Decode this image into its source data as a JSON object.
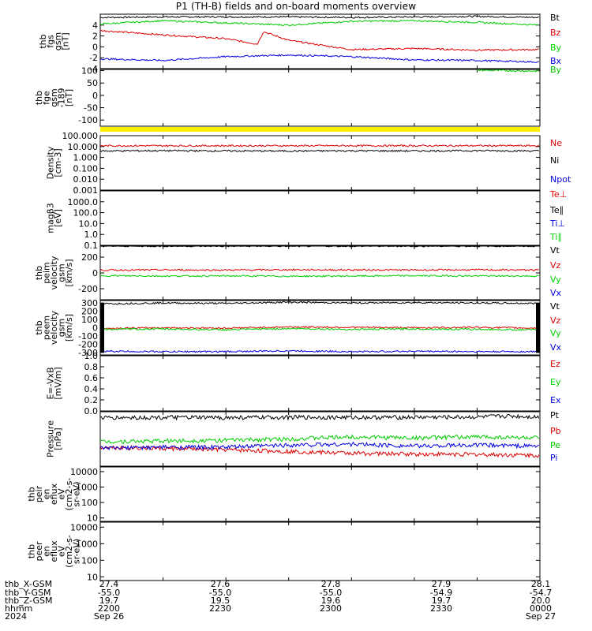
{
  "title": "P1 (TH-B) fields and on-board moments overview",
  "colors": {
    "black": "#000000",
    "red": "#dd0000",
    "green": "#00cc00",
    "blue": "#0000dd",
    "yellow": "#ffee00"
  },
  "chart_data": [
    {
      "type": "line",
      "ylabel": [
        "thb",
        "fgs",
        "gsm",
        "[nT]"
      ],
      "ylim": [
        -4,
        6
      ],
      "yticks": [
        "4",
        "2",
        "0",
        "-2",
        "-4"
      ],
      "series": [
        {
          "name": "Bt",
          "color": "black",
          "x": [
            27.4,
            27.5,
            27.6,
            27.7,
            27.8,
            27.9,
            28.0,
            28.1
          ],
          "values": [
            5.4,
            5.5,
            5.5,
            5.5,
            5.4,
            5.5,
            5.6,
            5.4
          ]
        },
        {
          "name": "Bz",
          "color": "red",
          "x": [
            27.4,
            27.5,
            27.6,
            27.65,
            27.66,
            27.7,
            27.8,
            27.9,
            28.0,
            28.1
          ],
          "values": [
            3.0,
            2.2,
            1.5,
            0.5,
            2.8,
            1.2,
            -0.5,
            -0.3,
            -0.6,
            -0.5
          ]
        },
        {
          "name": "By",
          "color": "green",
          "x": [
            27.4,
            27.5,
            27.6,
            27.7,
            27.8,
            27.9,
            28.0,
            28.1
          ],
          "values": [
            4.2,
            4.8,
            4.4,
            4.0,
            4.7,
            4.8,
            4.5,
            4.0
          ]
        },
        {
          "name": "Bx",
          "color": "blue",
          "x": [
            27.4,
            27.5,
            27.6,
            27.7,
            27.8,
            27.9,
            28.0,
            28.1
          ],
          "values": [
            -2.2,
            -2.5,
            -1.8,
            -1.5,
            -1.8,
            -2.4,
            -2.5,
            -2.8
          ]
        }
      ]
    },
    {
      "type": "line",
      "ylabel": [
        "thb",
        "fge",
        "gsm",
        "-189",
        "[nT]"
      ],
      "ylim": [
        -125,
        105
      ],
      "yticks": [
        "100",
        "50",
        "0",
        "-50",
        "-100"
      ],
      "series": [
        {
          "name": "By",
          "color": "green",
          "x": [
            28.0,
            28.1
          ],
          "values": [
            102,
            98
          ]
        }
      ]
    },
    {
      "type": "line",
      "ylabel": [
        "Density",
        "[cm-3]"
      ],
      "scale": "log",
      "ylim": [
        0.001,
        100
      ],
      "yticks": [
        "100.000",
        "10.000",
        "1.000",
        "0.100",
        "0.010",
        "0.001"
      ],
      "series": [
        {
          "name": "Ne",
          "color": "red",
          "x": [
            27.4,
            28.1
          ],
          "values": [
            12,
            12
          ]
        },
        {
          "name": "Ni",
          "color": "black",
          "x": [
            27.4,
            27.5,
            27.6,
            27.7,
            27.8,
            27.9,
            28.0,
            28.1
          ],
          "values": [
            4.0,
            4.2,
            4.0,
            3.9,
            4.1,
            4.0,
            4.2,
            4.0
          ]
        },
        {
          "name": "Npot",
          "color": "blue",
          "x": [],
          "values": []
        }
      ]
    },
    {
      "type": "line",
      "ylabel": [
        "magβ3",
        "[eV]"
      ],
      "scale": "log",
      "ylim": [
        0.1,
        10000
      ],
      "yticks": [
        "1000.0",
        "100.0",
        "10.0",
        "1.0",
        "0.1"
      ],
      "series": [
        {
          "name": "Te⊥",
          "color": "red",
          "x": [],
          "values": []
        },
        {
          "name": "Te∥",
          "color": "black",
          "x": [],
          "values": []
        },
        {
          "name": "Ti⊥",
          "color": "blue",
          "x": [],
          "values": []
        },
        {
          "name": "Ti∥",
          "color": "green",
          "x": [],
          "values": []
        }
      ]
    },
    {
      "type": "line",
      "ylabel": [
        "thb",
        "peim",
        "velocity",
        "gsm",
        "[km/s]"
      ],
      "ylim": [
        -340,
        340
      ],
      "yticks": [
        "200",
        "0",
        "-200"
      ],
      "series": [
        {
          "name": "Vt",
          "color": "black",
          "x": [
            27.4,
            28.1
          ],
          "values": [
            340,
            340
          ]
        },
        {
          "name": "Vz",
          "color": "red",
          "x": [
            27.4,
            27.5,
            27.6,
            27.7,
            27.8,
            27.9,
            28.0,
            28.1
          ],
          "values": [
            35,
            38,
            36,
            40,
            38,
            37,
            39,
            36
          ]
        },
        {
          "name": "Vy",
          "color": "green",
          "x": [
            27.4,
            27.5,
            27.6,
            27.7,
            27.8,
            27.9,
            28.0,
            28.1
          ],
          "values": [
            -35,
            -40,
            -38,
            -42,
            -40,
            -36,
            -38,
            -40
          ]
        },
        {
          "name": "Vx",
          "color": "blue",
          "x": [],
          "values": []
        }
      ]
    },
    {
      "type": "line",
      "ylabel": [
        "thb",
        "peem",
        "velocity",
        "gsm",
        "[km/s]"
      ],
      "ylim": [
        -330,
        330
      ],
      "yticks": [
        "300",
        "200",
        "100",
        "0",
        "-100",
        "-200",
        "-300"
      ],
      "series": [
        {
          "name": "Vt",
          "color": "black",
          "x": [
            27.4,
            27.5,
            27.6,
            27.7,
            27.8,
            27.9,
            28.0,
            28.1
          ],
          "values": [
            290,
            300,
            295,
            310,
            300,
            305,
            300,
            295
          ]
        },
        {
          "name": "Vz",
          "color": "red",
          "x": [
            27.4,
            27.5,
            27.6,
            27.7,
            27.8,
            27.9,
            28.0,
            28.1
          ],
          "values": [
            -10,
            0,
            -5,
            10,
            5,
            0,
            5,
            -5
          ]
        },
        {
          "name": "Vy",
          "color": "green",
          "x": [
            27.4,
            27.5,
            27.6,
            27.7,
            27.8,
            27.9,
            28.0,
            28.1
          ],
          "values": [
            -20,
            -15,
            -25,
            -10,
            -20,
            -15,
            -20,
            -25
          ]
        },
        {
          "name": "Vx",
          "color": "blue",
          "x": [
            27.4,
            27.5,
            27.6,
            27.7,
            27.8,
            27.9,
            28.0,
            28.1
          ],
          "values": [
            -285,
            -290,
            -290,
            -280,
            -290,
            -285,
            -290,
            -290
          ]
        }
      ]
    },
    {
      "type": "line",
      "ylabel": [
        "E=-VxB",
        "[mV/m]"
      ],
      "ylim": [
        0,
        1
      ],
      "yticks": [
        "1.0",
        "0.8",
        "0.6",
        "0.4",
        "0.2",
        "0.0"
      ],
      "series": [
        {
          "name": "Ez",
          "color": "red",
          "x": [],
          "values": []
        },
        {
          "name": "Ey",
          "color": "green",
          "x": [],
          "values": []
        },
        {
          "name": "Ex",
          "color": "blue",
          "x": [],
          "values": []
        }
      ]
    },
    {
      "type": "line",
      "ylabel": [
        "Pressure",
        "[nPa]"
      ],
      "scale": "log",
      "ylim": [
        0.001,
        0.1
      ],
      "yticks": [],
      "series": [
        {
          "name": "Pt",
          "color": "black",
          "x": [
            27.4,
            27.5,
            27.6,
            27.7,
            27.8,
            27.9,
            28.0,
            28.05,
            28.1
          ],
          "values": [
            0.06,
            0.062,
            0.061,
            0.063,
            0.062,
            0.063,
            0.064,
            0.07,
            0.064
          ]
        },
        {
          "name": "Pb",
          "color": "red",
          "x": [
            27.4,
            27.5,
            27.6,
            27.7,
            27.8,
            27.9,
            28.0,
            28.1
          ],
          "values": [
            0.005,
            0.0045,
            0.004,
            0.0035,
            0.003,
            0.0028,
            0.0027,
            0.0025
          ]
        },
        {
          "name": "Pe",
          "color": "green",
          "x": [
            27.4,
            27.5,
            27.6,
            27.7,
            27.8,
            27.9,
            28.0,
            28.1
          ],
          "values": [
            0.008,
            0.0085,
            0.009,
            0.01,
            0.012,
            0.011,
            0.012,
            0.011
          ]
        },
        {
          "name": "Pi",
          "color": "blue",
          "x": [
            27.4,
            27.5,
            27.6,
            27.7,
            27.8,
            27.9,
            28.0,
            28.1
          ],
          "values": [
            0.0045,
            0.005,
            0.005,
            0.006,
            0.0065,
            0.0055,
            0.006,
            0.0055
          ]
        }
      ]
    },
    {
      "type": "line",
      "ylabel": [
        "thb",
        "peir",
        "en",
        "eflux",
        "eV",
        "(cm2-s-",
        "sr-eV)"
      ],
      "scale": "log",
      "ylim": [
        6,
        20000
      ],
      "yticks": [
        "10000",
        "1000",
        "100",
        "10"
      ],
      "series": []
    },
    {
      "type": "line",
      "ylabel": [
        "thb",
        "peer",
        "en",
        "eflux",
        "eV",
        "(cm2-s-",
        "sr-eV)"
      ],
      "scale": "log",
      "ylim": [
        6,
        20000
      ],
      "yticks": [
        "10000",
        "1000",
        "100",
        "10"
      ],
      "series": []
    }
  ],
  "x_axis": {
    "row_labels": [
      "thb_X-GSM",
      "thb_Y-GSM",
      "thb_Z-GSM",
      "hhmm",
      "2024"
    ],
    "ticks": [
      {
        "x": "27.4",
        "y": "-55.0",
        "z": "19.7",
        "hhmm": "2200",
        "date": "Sep 26"
      },
      {
        "x": "27.6",
        "y": "-55.0",
        "z": "19.5",
        "hhmm": "2230",
        "date": ""
      },
      {
        "x": "27.8",
        "y": "-55.0",
        "z": "19.6",
        "hhmm": "2300",
        "date": ""
      },
      {
        "x": "27.9",
        "y": "-54.9",
        "z": "19.7",
        "hhmm": "2330",
        "date": ""
      },
      {
        "x": "28.1",
        "y": "-54.7",
        "z": "20.0",
        "hhmm": "0000",
        "date": "Sep 27"
      }
    ]
  }
}
